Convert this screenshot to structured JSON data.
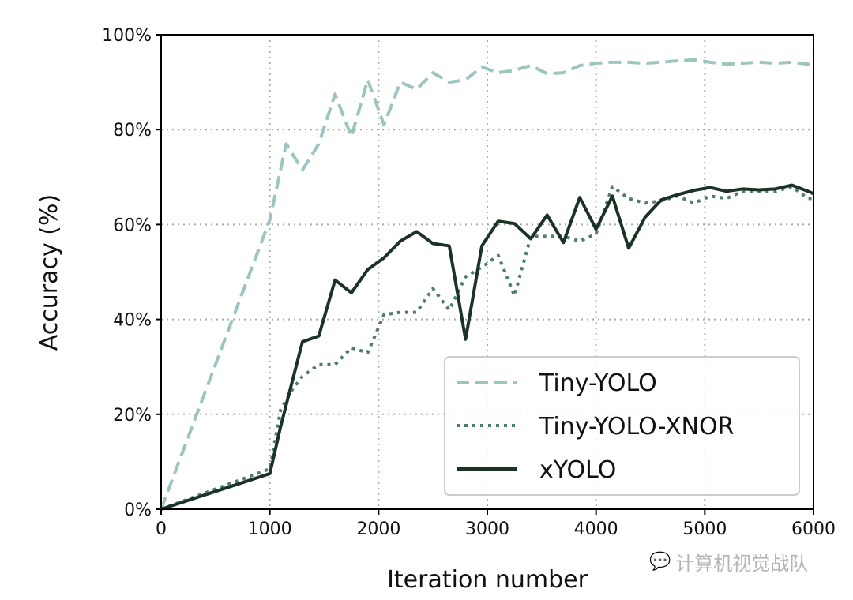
{
  "chart_data": {
    "type": "line",
    "xlabel": "Iteration number",
    "ylabel": "Accuracy (%)",
    "xlim": [
      0,
      6000
    ],
    "ylim": [
      0,
      100
    ],
    "xticks": [
      "0",
      "1000",
      "2000",
      "3000",
      "4000",
      "5000",
      "6000"
    ],
    "yticks": [
      "0%",
      "20%",
      "40%",
      "60%",
      "80%",
      "100%"
    ],
    "grid": true,
    "legend_position": "lower-right",
    "series": [
      {
        "name": "Tiny-YOLO",
        "style": "dashed",
        "color": "#9cc4c0",
        "x": [
          0,
          1000,
          1150,
          1300,
          1450,
          1600,
          1750,
          1900,
          2050,
          2200,
          2350,
          2500,
          2650,
          2800,
          2950,
          3100,
          3250,
          3400,
          3550,
          3700,
          3850,
          4000,
          4150,
          4300,
          4450,
          4600,
          4750,
          4900,
          5050,
          5200,
          5350,
          5500,
          5650,
          5800,
          5950,
          6000
        ],
        "y": [
          0,
          61,
          77,
          71.5,
          77,
          87.5,
          78.5,
          90.5,
          81,
          90,
          88.5,
          92,
          90,
          90.5,
          93.2,
          92,
          92.5,
          93.5,
          91.8,
          92,
          93.5,
          94,
          94.2,
          94.2,
          94,
          94.2,
          94.5,
          94.7,
          94.2,
          93.8,
          94,
          94.2,
          94,
          94.2,
          93.8,
          93.5
        ]
      },
      {
        "name": "Tiny-YOLO-XNOR",
        "style": "dotted",
        "color": "#4e7d6c",
        "x": [
          0,
          1000,
          1100,
          1200,
          1300,
          1450,
          1600,
          1750,
          1900,
          2050,
          2200,
          2350,
          2500,
          2650,
          2800,
          2950,
          3100,
          3250,
          3400,
          3550,
          3700,
          3850,
          4000,
          4150,
          4300,
          4450,
          4600,
          4750,
          4900,
          5050,
          5200,
          5350,
          5500,
          5650,
          5800,
          5950,
          6000
        ],
        "y": [
          0,
          8.5,
          21,
          25,
          28,
          30.5,
          30.5,
          34,
          33,
          41,
          41.5,
          41.5,
          46.5,
          42,
          49,
          51,
          53.5,
          45,
          57.5,
          57.5,
          57.5,
          56.5,
          58,
          68,
          65.5,
          64.5,
          65,
          66,
          64.5,
          66,
          65.5,
          67,
          67,
          67,
          68,
          65.5,
          65.5
        ]
      },
      {
        "name": "xYOLO",
        "style": "solid",
        "color": "#1b3325",
        "x": [
          0,
          1000,
          1100,
          1300,
          1450,
          1600,
          1750,
          1900,
          2050,
          2200,
          2350,
          2500,
          2650,
          2800,
          2950,
          3100,
          3250,
          3400,
          3550,
          3700,
          3850,
          4000,
          4150,
          4300,
          4450,
          4600,
          4750,
          4900,
          5050,
          5200,
          5350,
          5500,
          5650,
          5800,
          5950,
          6000
        ],
        "y": [
          0,
          7.5,
          17.5,
          35.3,
          36.5,
          48.3,
          45.6,
          50.5,
          53,
          56.5,
          58.5,
          56,
          55.5,
          35.8,
          55.5,
          60.7,
          60.2,
          57,
          62,
          56.2,
          65.7,
          59,
          66,
          55,
          61.5,
          65.2,
          66.3,
          67.2,
          67.8,
          67,
          67.5,
          67.3,
          67.5,
          68.3,
          67,
          66.5
        ]
      }
    ]
  },
  "watermark": {
    "text": "计算机视觉战队",
    "icon": "wechat-icon"
  }
}
